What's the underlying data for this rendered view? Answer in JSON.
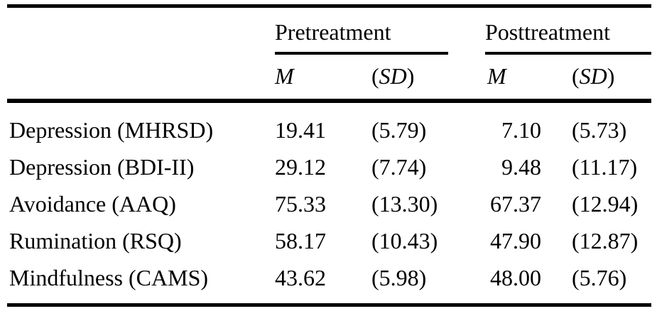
{
  "colors": {
    "text": "#000000",
    "background": "#ffffff",
    "rule": "#000000"
  },
  "table": {
    "groups": [
      {
        "label": "Pretreatment"
      },
      {
        "label": "Posttreatment"
      }
    ],
    "subheader": {
      "m": "M",
      "paren_open": "(",
      "sd": "SD",
      "paren_close": ")"
    },
    "rows": [
      {
        "label": "Depression (MHRSD)",
        "pre_m": "19.41",
        "pre_sd": "(5.79)",
        "post_m": "7.10",
        "post_sd": "(5.73)"
      },
      {
        "label": "Depression (BDI-II)",
        "pre_m": "29.12",
        "pre_sd": "(7.74)",
        "post_m": "9.48",
        "post_sd": "(11.17)"
      },
      {
        "label": "Avoidance (AAQ)",
        "pre_m": "75.33",
        "pre_sd": "(13.30)",
        "post_m": "67.37",
        "post_sd": "(12.94)"
      },
      {
        "label": "Rumination (RSQ)",
        "pre_m": "58.17",
        "pre_sd": "(10.43)",
        "post_m": "47.90",
        "post_sd": "(12.87)"
      },
      {
        "label": "Mindfulness (CAMS)",
        "pre_m": "43.62",
        "pre_sd": "(5.98)",
        "post_m": "48.00",
        "post_sd": "(5.76)"
      }
    ]
  }
}
